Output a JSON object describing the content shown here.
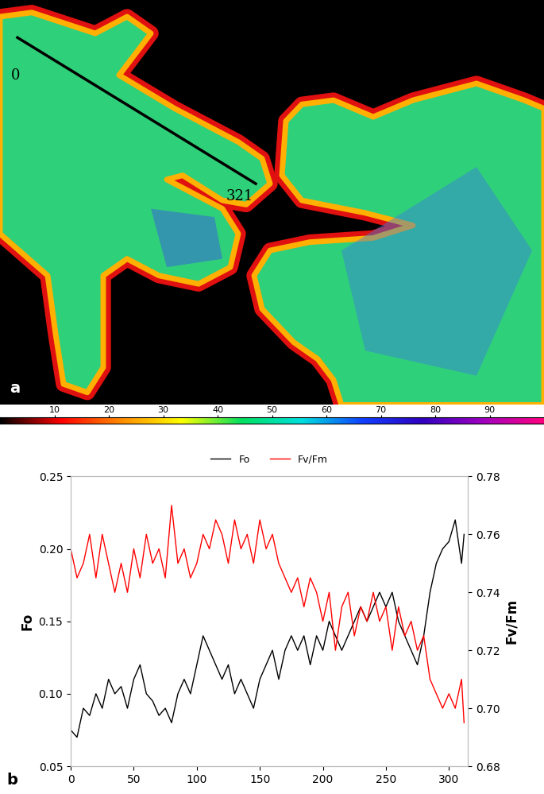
{
  "chart_data": [
    {
      "type": "image",
      "title": "a",
      "annotations": [
        "0",
        "321"
      ],
      "colorbar": {
        "range": [
          0,
          100
        ],
        "ticks": [
          10,
          20,
          30,
          40,
          50,
          60,
          70,
          80,
          90
        ]
      }
    },
    {
      "type": "line",
      "title": "b",
      "legend": "top",
      "x": [
        0,
        5,
        10,
        15,
        20,
        25,
        30,
        35,
        40,
        45,
        50,
        55,
        60,
        65,
        70,
        75,
        80,
        85,
        90,
        95,
        100,
        105,
        110,
        115,
        120,
        125,
        130,
        135,
        140,
        145,
        150,
        155,
        160,
        165,
        170,
        175,
        180,
        185,
        190,
        195,
        200,
        205,
        210,
        215,
        220,
        225,
        230,
        235,
        240,
        245,
        250,
        255,
        260,
        265,
        270,
        275,
        280,
        285,
        290,
        295,
        300,
        305,
        310,
        312
      ],
      "xlim": [
        0,
        315
      ],
      "xticks": [
        0,
        50,
        100,
        150,
        200,
        250,
        300
      ],
      "ylabel": "Fo",
      "y2label": "Fv/Fm",
      "ylim": [
        0.05,
        0.25
      ],
      "yticks": [
        {
          "value": 0.05,
          "label": "0.05"
        },
        {
          "value": 0.1,
          "label": "0.10"
        },
        {
          "value": 0.15,
          "label": "0.15"
        },
        {
          "value": 0.2,
          "label": "0.20"
        },
        {
          "value": 0.25,
          "label": "0.25"
        }
      ],
      "y2lim": [
        0.68,
        0.78
      ],
      "y2ticks": [
        {
          "value": 0.68,
          "label": "0.68"
        },
        {
          "value": 0.7,
          "label": "0.70"
        },
        {
          "value": 0.72,
          "label": "0.72"
        },
        {
          "value": 0.74,
          "label": "0.74"
        },
        {
          "value": 0.76,
          "label": "0.76"
        },
        {
          "value": 0.78,
          "label": "0.78"
        }
      ],
      "series": [
        {
          "name": "Fo",
          "color": "#000000",
          "values": [
            0.075,
            0.07,
            0.09,
            0.085,
            0.1,
            0.09,
            0.11,
            0.1,
            0.105,
            0.09,
            0.11,
            0.12,
            0.1,
            0.095,
            0.085,
            0.09,
            0.08,
            0.1,
            0.11,
            0.1,
            0.12,
            0.14,
            0.13,
            0.12,
            0.11,
            0.12,
            0.1,
            0.11,
            0.1,
            0.09,
            0.11,
            0.12,
            0.13,
            0.11,
            0.13,
            0.14,
            0.13,
            0.14,
            0.12,
            0.14,
            0.13,
            0.15,
            0.14,
            0.13,
            0.14,
            0.15,
            0.16,
            0.15,
            0.16,
            0.17,
            0.16,
            0.17,
            0.15,
            0.14,
            0.13,
            0.12,
            0.14,
            0.17,
            0.19,
            0.2,
            0.205,
            0.22,
            0.19,
            0.21
          ]
        },
        {
          "name": "Fv/Fm",
          "color": "#ff0000",
          "axis": "y2",
          "values": [
            0.755,
            0.745,
            0.75,
            0.76,
            0.745,
            0.76,
            0.75,
            0.74,
            0.75,
            0.74,
            0.755,
            0.745,
            0.76,
            0.75,
            0.755,
            0.745,
            0.77,
            0.75,
            0.755,
            0.745,
            0.75,
            0.76,
            0.755,
            0.765,
            0.76,
            0.75,
            0.765,
            0.755,
            0.76,
            0.75,
            0.765,
            0.755,
            0.76,
            0.75,
            0.745,
            0.74,
            0.745,
            0.735,
            0.745,
            0.74,
            0.73,
            0.74,
            0.72,
            0.735,
            0.74,
            0.725,
            0.735,
            0.73,
            0.74,
            0.73,
            0.735,
            0.72,
            0.735,
            0.725,
            0.73,
            0.72,
            0.725,
            0.71,
            0.705,
            0.7,
            0.705,
            0.7,
            0.71,
            0.695
          ]
        }
      ]
    }
  ]
}
